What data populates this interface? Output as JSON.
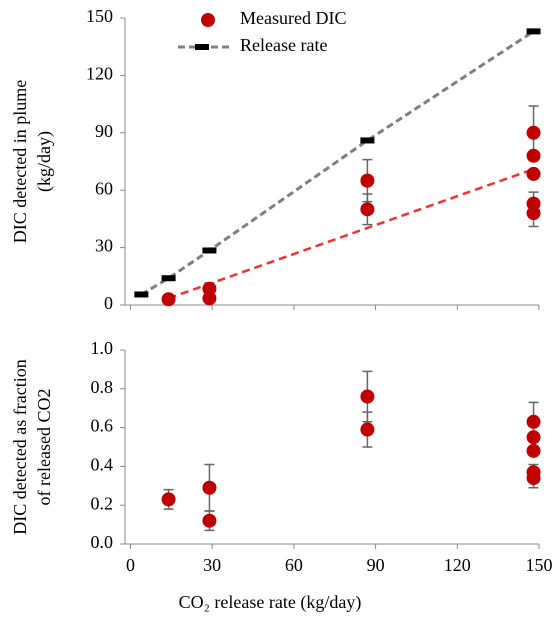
{
  "chart_data": [
    {
      "type": "scatter",
      "ylabel": [
        "DIC detected in plume",
        "(kg/day)"
      ],
      "xlim": [
        -2,
        150
      ],
      "xticks": [
        0,
        30,
        60,
        90,
        120,
        150
      ],
      "ylim": [
        0,
        150
      ],
      "yticks": [
        0,
        30,
        60,
        90,
        120,
        150
      ],
      "legend": "top",
      "series": [
        {
          "name": "Measured DIC",
          "color": "#c00000",
          "marker": "circle",
          "x": [
            14,
            29,
            29,
            87,
            87,
            148,
            148,
            148,
            148,
            148
          ],
          "values": [
            3,
            8.5,
            3.5,
            65,
            50,
            90,
            78,
            68.5,
            53,
            48
          ],
          "errors": [
            0.5,
            3,
            1,
            11,
            8,
            14,
            0,
            0,
            6,
            7
          ]
        },
        {
          "name": "Release rate",
          "color": "#000000",
          "line_color": "#7f7f7f",
          "marker": "dash",
          "line": "dashed",
          "x": [
            4,
            14,
            29,
            87,
            148
          ],
          "values": [
            5.5,
            14,
            28.5,
            86,
            143
          ]
        }
      ],
      "trendline": {
        "x": [
          14,
          148
        ],
        "values": [
          3.5,
          71
        ],
        "color": "#ee3333"
      }
    },
    {
      "type": "scatter",
      "ylabel": [
        "DIC detected as fraction",
        "of released CO2"
      ],
      "xlabel": "CO₂ release rate (kg/day)",
      "xlim": [
        -2,
        150
      ],
      "xticks": [
        0,
        30,
        60,
        90,
        120,
        150
      ],
      "ylim": [
        0,
        1
      ],
      "yticks": [
        {
          "value": 0,
          "label": "0.0"
        },
        0.2,
        0.4,
        0.6,
        0.8,
        {
          "value": 1,
          "label": "1.0"
        }
      ],
      "series": [
        {
          "name": "Measured DIC",
          "color": "#c00000",
          "marker": "circle",
          "x": [
            14,
            29,
            29,
            87,
            87,
            148,
            148,
            148,
            148,
            148
          ],
          "values": [
            0.23,
            0.29,
            0.12,
            0.76,
            0.59,
            0.63,
            0.55,
            0.48,
            0.37,
            0.34
          ],
          "errors": [
            0.05,
            0.12,
            0.05,
            0.13,
            0.09,
            0.1,
            0,
            0,
            0.04,
            0.05
          ]
        }
      ]
    }
  ]
}
